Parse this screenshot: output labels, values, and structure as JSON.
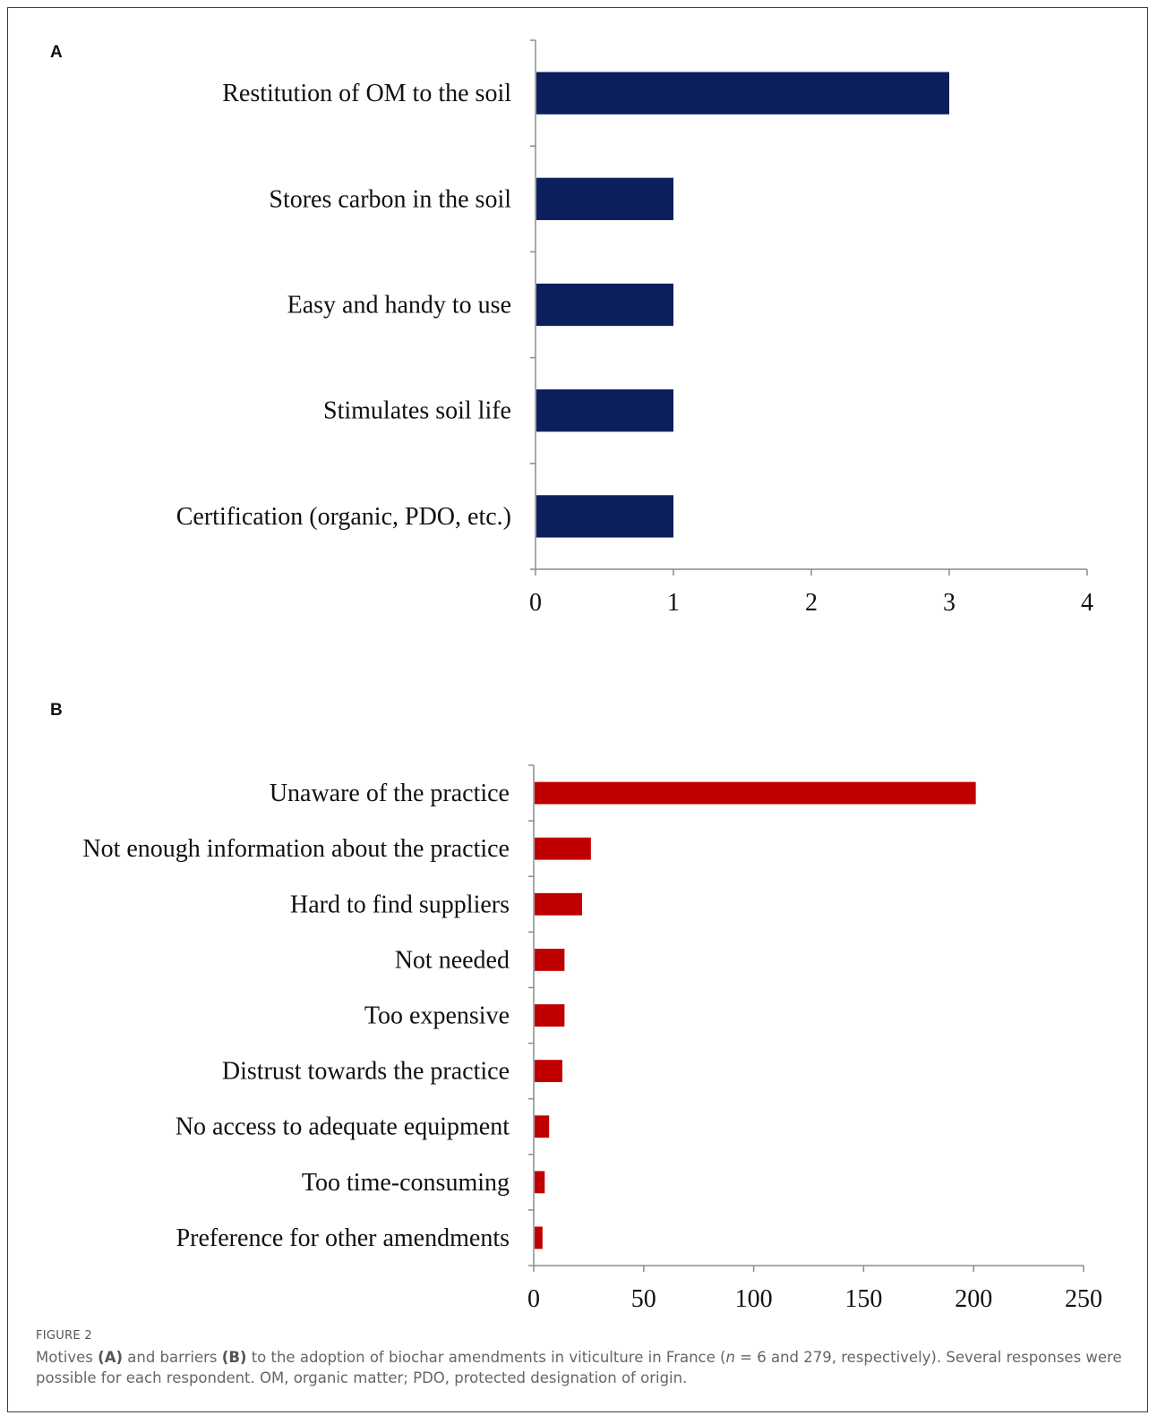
{
  "figure": {
    "title": "FIGURE 2",
    "caption": {
      "t1": "Motives ",
      "ref_a": "(A)",
      "t2": " and barriers ",
      "ref_b": "(B)",
      "t3": " to the adoption of biochar amendments in viticulture in France (",
      "n_symbol": "n",
      "t4": " = 6 and 279, respectively). Several responses were possible for each respondent. OM, organic matter; PDO, protected designation of origin."
    }
  },
  "chart_data": [
    {
      "panel": "A",
      "type": "bar",
      "orientation": "horizontal",
      "color": "#0b1f5c",
      "categories": [
        "Restitution of OM to the soil",
        "Stores carbon in the soil",
        "Easy and handy to use",
        "Stimulates soil life",
        "Certification (organic, PDO, etc.)"
      ],
      "values": [
        3,
        1,
        1,
        1,
        1
      ],
      "xlim": [
        0,
        4
      ],
      "xticks": [
        "0",
        "1",
        "2",
        "3",
        "4"
      ],
      "title": "",
      "xlabel": "",
      "ylabel": "",
      "grid": false
    },
    {
      "panel": "B",
      "type": "bar",
      "orientation": "horizontal",
      "color": "#c00000",
      "categories": [
        "Unaware of the practice",
        "Not enough information about the practice",
        "Hard to find suppliers",
        "Not needed",
        "Too expensive",
        "Distrust towards the practice",
        "No access to adequate equipment",
        "Too time-consuming",
        "Preference for other amendments"
      ],
      "values": [
        201,
        26,
        22,
        14,
        14,
        13,
        7,
        5,
        4
      ],
      "xlim": [
        0,
        250
      ],
      "xticks": [
        "0",
        "50",
        "100",
        "150",
        "200",
        "250"
      ],
      "title": "",
      "xlabel": "",
      "ylabel": "",
      "grid": false
    }
  ]
}
